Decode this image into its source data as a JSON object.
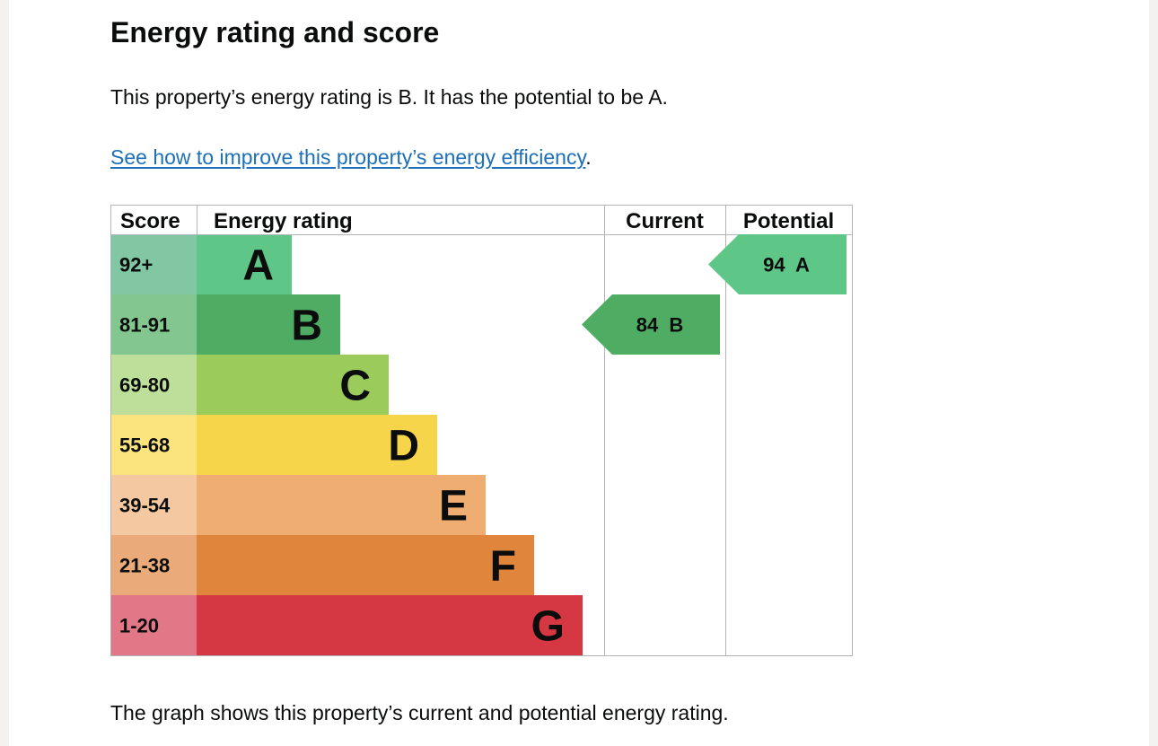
{
  "page": {
    "title": "Energy rating and score",
    "summary": "This property’s energy rating is B. It has the potential to be A.",
    "improve_link": "See how to improve this property’s energy efficiency",
    "improve_link_suffix": ".",
    "caption": "The graph shows this property’s current and potential energy rating."
  },
  "chart_data": {
    "type": "bar",
    "headers": {
      "score": "Score",
      "rating": "Energy rating",
      "current": "Current",
      "potential": "Potential"
    },
    "bands": [
      {
        "letter": "A",
        "range": "92+",
        "color": "#5ec687",
        "score_color": "#81c7a3"
      },
      {
        "letter": "B",
        "range": "81-91",
        "color": "#4fad63",
        "score_color": "#84c68f"
      },
      {
        "letter": "C",
        "range": "69-80",
        "color": "#9bcb5a",
        "score_color": "#bedf9a"
      },
      {
        "letter": "D",
        "range": "55-68",
        "color": "#f6d54b",
        "score_color": "#fbe37e"
      },
      {
        "letter": "E",
        "range": "39-54",
        "color": "#efad72",
        "score_color": "#f4c8a1"
      },
      {
        "letter": "F",
        "range": "21-38",
        "color": "#e0863c",
        "score_color": "#eaaa7a"
      },
      {
        "letter": "G",
        "range": "1-20",
        "color": "#d63843",
        "score_color": "#e27887"
      }
    ],
    "current": {
      "score": 84,
      "rating": "B",
      "label": "84  B"
    },
    "potential": {
      "score": 94,
      "rating": "A",
      "label": "94  A"
    }
  }
}
